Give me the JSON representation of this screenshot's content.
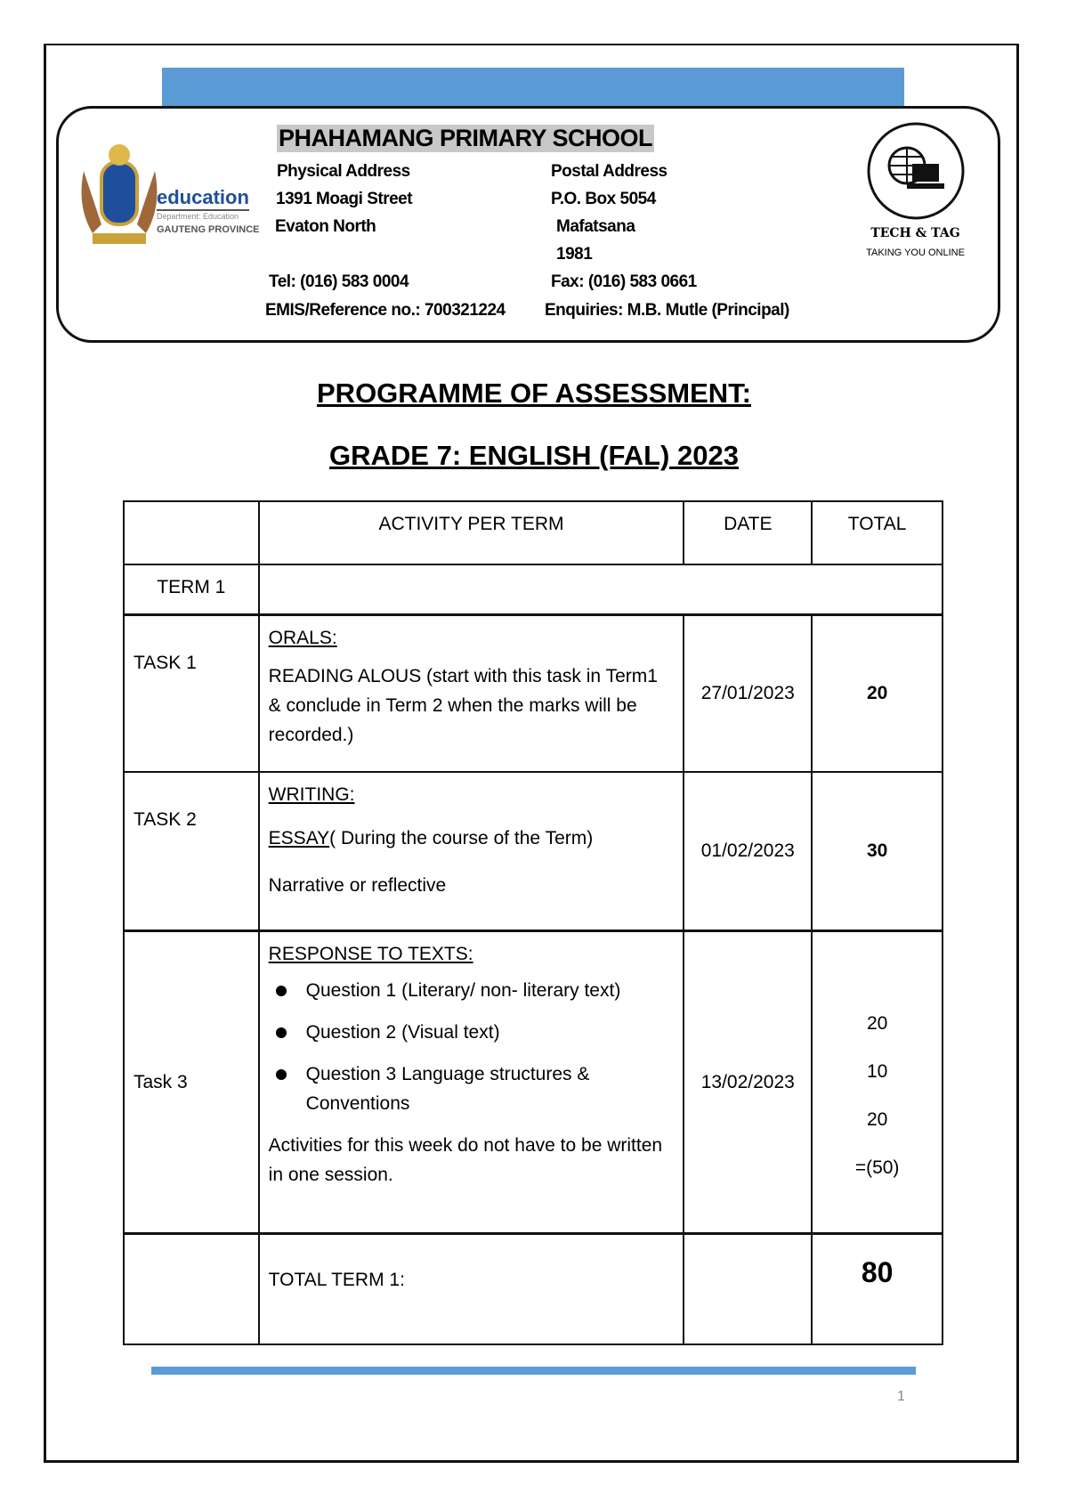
{
  "header": {
    "school": "PHAHAMANG PRIMARY SCHOOL",
    "physical_label": "Physical Address",
    "street": "1391 Moagi Street",
    "area": "Evaton North",
    "postal_label": "Postal Address",
    "po_box": "P.O. Box 5054",
    "town": "Mafatsana",
    "code": "1981",
    "tel": "Tel: (016) 583 0004",
    "fax": "Fax: (016) 583 0661",
    "emis": "EMIS/Reference no.:  700321224",
    "enquiries": "Enquiries: M.B. Mutle (Principal)",
    "logo_left": {
      "word": "education",
      "dept": "Department: Education",
      "province": "GAUTENG PROVINCE"
    },
    "logo_right": {
      "name": "TECH & TAG",
      "tagline": "TAKING YOU ONLINE"
    }
  },
  "titles": {
    "line1": "PROGRAMME OF ASSESSMENT:",
    "line2": "GRADE 7:  ENGLISH (FAL) 2023"
  },
  "table": {
    "headers": [
      "",
      "ACTIVITY PER TERM",
      "DATE",
      "TOTAL"
    ],
    "term": "TERM 1",
    "task1": {
      "label": "TASK 1",
      "heading": "ORALS:",
      "text": "READING ALOUS (start with this task in Term1 & conclude in Term 2 when the marks will be recorded.)",
      "date": "27/01/2023",
      "total": "20"
    },
    "task2": {
      "label": "TASK 2",
      "heading": "WRITING:",
      "essay": "ESSAY",
      "essay_rest": "( During the course of the Term)",
      "type": "Narrative or reflective",
      "date": "01/02/2023",
      "total": "30"
    },
    "task3": {
      "label": "Task 3",
      "heading": "RESPONSE TO TEXTS:",
      "items": [
        "Question 1 (Literary/ non- literary text)",
        "Question 2 (Visual text)",
        "Question 3 Language structures & Conventions"
      ],
      "note": "Activities for this week do not have to be written in one session.",
      "date": "13/02/2023",
      "totals": [
        "20",
        "10",
        "20",
        "=(50)"
      ]
    },
    "total_label": "TOTAL TERM 1:",
    "total_value": "80"
  },
  "page_number": "1",
  "colors": {
    "accent": "#5b9bd5"
  }
}
